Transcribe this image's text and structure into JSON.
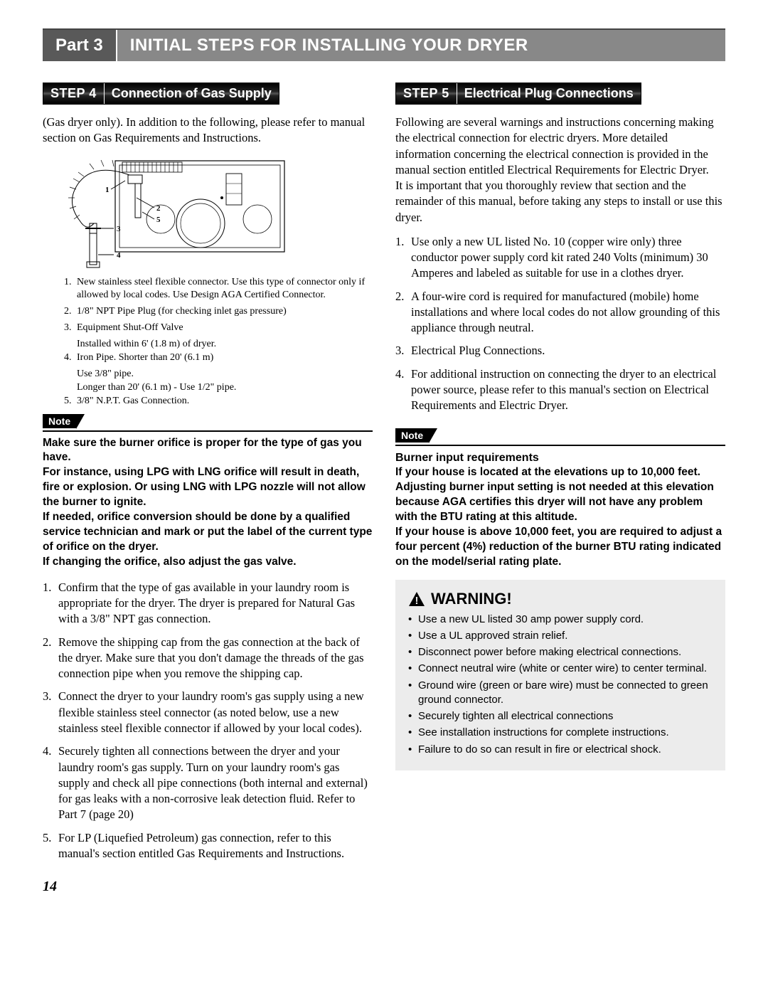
{
  "header": {
    "part": "Part 3",
    "title": "INITIAL STEPS FOR INSTALLING YOUR DRYER"
  },
  "left": {
    "step_label": "STEP 4",
    "step_title": "Connection of Gas Supply",
    "intro": "(Gas dryer only).   In addition to the following, please refer to manual section on Gas Requirements and Instructions.",
    "diagram": {
      "labels": [
        "1",
        "2",
        "3",
        "4",
        "5"
      ],
      "stroke": "#000000",
      "fill": "#ffffff"
    },
    "diag_items": [
      {
        "n": "1.",
        "t": "New stainless steel flexible connector.  Use this type of connector only if allowed by local codes.  Use Design AGA Certified Connector."
      },
      {
        "n": "2.",
        "t": "1/8\" NPT Pipe Plug (for checking inlet gas pressure)"
      },
      {
        "n": "3.",
        "t": "Equipment Shut-Off Valve",
        "sub": "Installed within 6'  (1.8 m) of dryer."
      },
      {
        "n": "4.",
        "t": "Iron Pipe.  Shorter than 20'  (6.1 m)",
        "sub": "Use 3/8\" pipe.",
        "sub2": "Longer than 20' (6.1 m) - Use 1/2\" pipe."
      },
      {
        "n": "5.",
        "t": "3/8\" N.P.T. Gas Connection."
      }
    ],
    "note_label": "Note",
    "note_body": "Make sure the burner orifice is proper for the type of gas you have.\nFor instance, using LPG with LNG orifice will result in death, fire or explosion. Or using LNG with LPG nozzle will not allow the burner to ignite.\nIf needed, orifice conversion should be done by a qualified service technician and mark or put the label of  the current type of orifice on the dryer.\nIf changing the orifice, also adjust the gas valve.",
    "steps": [
      "Confirm that the type of gas available in your laundry room is appropriate for the dryer.  The dryer is prepared for Natural Gas with a 3/8\" NPT gas connection.",
      "Remove the shipping cap from the gas connection at the back of the dryer.  Make sure that you don't damage the threads of the gas connection pipe when you remove the shipping cap.",
      "Connect the dryer to your laundry room's gas supply using a new flexible stainless steel connector (as noted below, use a new stainless steel flexible connector if allowed by your local codes).",
      "Securely tighten all connections between the dryer and your laundry room's gas supply.  Turn on your laundry room's gas supply and check all pipe connections (both internal and external) for gas leaks with a non-corrosive leak detection fluid. Refer to Part 7 (page 20)",
      "For LP (Liquefied Petroleum) gas connection, refer to this manual's section entitled Gas Requirements and Instructions."
    ]
  },
  "right": {
    "step_label": "STEP 5",
    "step_title": "Electrical Plug Connections",
    "intro": "Following are several warnings and instructions concerning making the electrical connection for electric dryers.  More detailed information concerning the electrical connection is provided in the manual section entitled Electrical Requirements for Electric Dryer.\nIt is important that you thoroughly review that section and the remainder of this manual, before taking any steps to install or use this dryer.",
    "steps": [
      "Use only a new UL listed No. 10 (copper wire only) three conductor power supply cord kit rated 240 Volts (minimum) 30 Amperes and labeled as suitable for use in a clothes dryer.",
      "A four-wire cord is required for manufactured (mobile) home installations and where local codes do not allow grounding of this appliance through neutral.",
      "Electrical Plug Connections.",
      "For additional instruction on connecting the dryer to an electrical power source, please refer to this manual's section on Electrical Requirements and Electric Dryer."
    ],
    "note_label": "Note",
    "note_head": "Burner input requirements",
    "note_body": "If your house is located at the elevations up to 10,000 feet.\nAdjusting burner input setting is not needed at this elevation because AGA certifies this dryer will not have any problem with the BTU rating at this altitude.\nIf your house is above 10,000 feet, you are required to adjust a four percent (4%) reduction of the burner BTU rating indicated on the model/serial rating plate.",
    "warning_label": "WARNING!",
    "warning_items": [
      "Use a new UL listed 30 amp power supply cord.",
      "Use a UL approved strain relief.",
      "Disconnect power before making electrical connections.",
      "Connect neutral wire (white or center wire) to center terminal.",
      "Ground wire (green or bare  wire) must be connected to green ground connector.",
      "Securely tighten all electrical connections",
      "See installation instructions for complete instructions.",
      "Failure to do so can result in fire or electrical shock."
    ]
  },
  "page_num": "14"
}
